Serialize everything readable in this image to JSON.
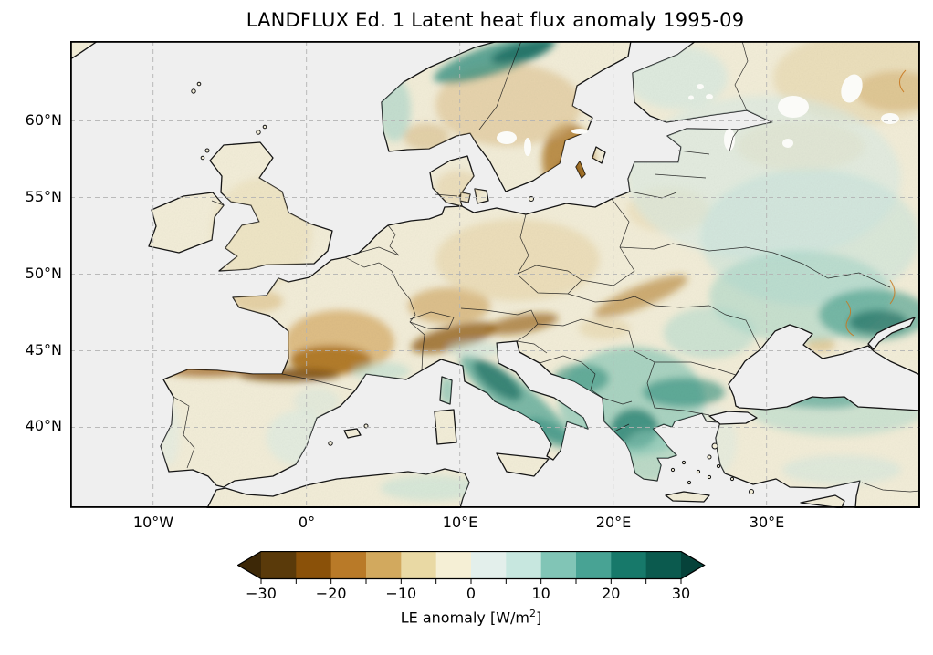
{
  "title": "LANDFLUX Ed. 1 Latent heat flux anomaly 1995-09",
  "axes": {
    "lat_tick_labels": [
      "60°N",
      "55°N",
      "50°N",
      "45°N",
      "40°N"
    ],
    "lon_tick_labels": [
      "10°W",
      "0°",
      "10°E",
      "20°E",
      "30°E"
    ],
    "lat_tick_values": [
      60,
      55,
      50,
      45,
      40
    ],
    "lon_tick_values": [
      -10,
      0,
      10,
      20,
      30
    ],
    "extent": {
      "lon_min": -15.4,
      "lon_max": 40.1,
      "lat_min": 34.6,
      "lat_max": 65.2
    }
  },
  "colorbar": {
    "label_main": "LE anomaly [W/m",
    "label_sup": "2",
    "label_close": "]",
    "tick_labels": [
      "−30",
      "−20",
      "−10",
      "0",
      "10",
      "20",
      "30"
    ],
    "tick_values": [
      -30,
      -20,
      -10,
      0,
      10,
      20,
      30
    ],
    "boundaries": [
      -30,
      -25,
      -20,
      -15,
      -10,
      -5,
      0,
      5,
      10,
      15,
      20,
      25,
      30
    ],
    "extend": "both",
    "colors": [
      "#3d2807",
      "#5a3a0a",
      "#8a5109",
      "#b97a28",
      "#d2a95e",
      "#e9d9a4",
      "#f5efd5",
      "#e3efeb",
      "#c7e7df",
      "#81c5b6",
      "#48a394",
      "#17796a",
      "#0b5a4e",
      "#06423a"
    ]
  },
  "map": {
    "ocean_color": "#efefef",
    "land_base_color": "#f3eed9",
    "coastline_color": "#141414",
    "border_color": "#1a1a1a",
    "gridline_color": "#b3b3b3",
    "lake_color": "#fbfbf8",
    "river_color": "#c87820",
    "anomaly_pattern": [
      {
        "region": "Southwest & central France",
        "sign": "negative",
        "approx_Wm2": -15
      },
      {
        "region": "Pyrenees / north Spain coast",
        "sign": "negative",
        "approx_Wm2": -20
      },
      {
        "region": "Alps / southern Germany / Austria",
        "sign": "negative",
        "approx_Wm2": -12
      },
      {
        "region": "Southern Sweden & Scandinavian interior",
        "sign": "negative",
        "approx_Wm2": -15
      },
      {
        "region": "Northern Norway coast",
        "sign": "positive",
        "approx_Wm2": 15
      },
      {
        "region": "Italian peninsula (Apennines)",
        "sign": "positive",
        "approx_Wm2": 20
      },
      {
        "region": "Balkans (Bosnia, Serbia, N. Macedonia, Bulgaria, Greece)",
        "sign": "positive",
        "approx_Wm2": 18
      },
      {
        "region": "Eastern Ukraine / SW Russia",
        "sign": "positive",
        "approx_Wm2": 15
      },
      {
        "region": "Northwest Turkey (Black Sea coast)",
        "sign": "positive",
        "approx_Wm2": 20
      },
      {
        "region": "Iberia",
        "sign": "weak mixed",
        "approx_Wm2": -3
      },
      {
        "region": "British Isles",
        "sign": "weak negative",
        "approx_Wm2": -5
      },
      {
        "region": "Baltics / Belarus / western Russia",
        "sign": "weak positive",
        "approx_Wm2": 5
      },
      {
        "region": "Northeast Russia (map corner)",
        "sign": "weak negative",
        "approx_Wm2": -5
      }
    ]
  }
}
